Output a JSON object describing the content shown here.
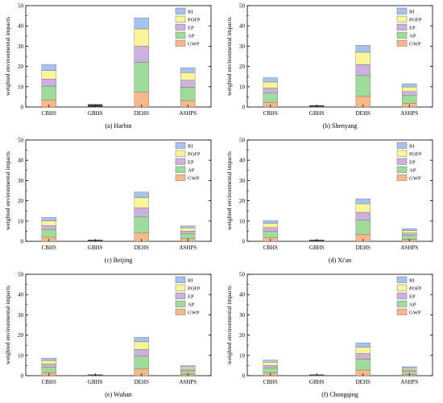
{
  "chart_data": [
    {
      "type": "bar",
      "stacked": true,
      "caption": "(a) Harbin",
      "ylabel": "weighted environmental impacts",
      "ylim": [
        0,
        50
      ],
      "yticks": [
        "0",
        "10",
        "20",
        "30",
        "40",
        "50"
      ],
      "categories": [
        "CBHS",
        "GBHS",
        "DEHS",
        "ASHPS"
      ],
      "legend_position": "top-right",
      "series": [
        {
          "name": "GWP",
          "values": [
            3.5,
            0.3,
            7.5,
            3.2
          ]
        },
        {
          "name": "AP",
          "values": [
            6.8,
            0.3,
            14.5,
            6.5
          ]
        },
        {
          "name": "EP",
          "values": [
            3.5,
            0.2,
            8,
            3.5
          ]
        },
        {
          "name": "POFP",
          "values": [
            4.2,
            0.3,
            8.5,
            3.8
          ]
        },
        {
          "name": "RI",
          "values": [
            3.0,
            0.2,
            5.5,
            2.3
          ]
        }
      ]
    },
    {
      "type": "bar",
      "stacked": true,
      "caption": "(b) Shenyang",
      "ylabel": "weighted environmental impacts",
      "ylim": [
        0,
        50
      ],
      "yticks": [
        "0",
        "10",
        "20",
        "30",
        "40",
        "50"
      ],
      "categories": [
        "CBHS",
        "GBHS",
        "DEHS",
        "ASHPS"
      ],
      "legend_position": "top-right",
      "series": [
        {
          "name": "GWP",
          "values": [
            2.3,
            0.2,
            5.2,
            1.8
          ]
        },
        {
          "name": "AP",
          "values": [
            4.5,
            0.2,
            10.3,
            3.8
          ]
        },
        {
          "name": "EP",
          "values": [
            2.5,
            0.1,
            5.5,
            2.0
          ]
        },
        {
          "name": "POFP",
          "values": [
            3.0,
            0.2,
            6.0,
            2.3
          ]
        },
        {
          "name": "RI",
          "values": [
            2.2,
            0.1,
            3.5,
            1.6
          ]
        }
      ]
    },
    {
      "type": "bar",
      "stacked": true,
      "caption": "(c) Beijing",
      "ylabel": "weighted environmental impacts",
      "ylim": [
        0,
        50
      ],
      "yticks": [
        "0",
        "10",
        "20",
        "30",
        "40",
        "50"
      ],
      "categories": [
        "CBHS",
        "GBHS",
        "DEHS",
        "ASHPS"
      ],
      "legend_position": "top-right",
      "series": [
        {
          "name": "GWP",
          "values": [
            2.0,
            0.2,
            4.2,
            1.3
          ]
        },
        {
          "name": "AP",
          "values": [
            3.8,
            0.2,
            8.0,
            2.5
          ]
        },
        {
          "name": "EP",
          "values": [
            2.0,
            0.1,
            4.3,
            1.3
          ]
        },
        {
          "name": "POFP",
          "values": [
            2.3,
            0.1,
            5.0,
            1.5
          ]
        },
        {
          "name": "RI",
          "values": [
            1.7,
            0.1,
            2.8,
            1.0
          ]
        }
      ]
    },
    {
      "type": "bar",
      "stacked": true,
      "caption": "(d) Xi'an",
      "ylabel": "weighted environmental impacts",
      "ylim": [
        0,
        50
      ],
      "yticks": [
        "0",
        "10",
        "20",
        "30",
        "40",
        "50"
      ],
      "categories": [
        "CBHS",
        "GBHS",
        "DEHS",
        "ASHPS"
      ],
      "legend_position": "top-right",
      "series": [
        {
          "name": "GWP",
          "values": [
            1.7,
            0.2,
            3.5,
            1.0
          ]
        },
        {
          "name": "AP",
          "values": [
            3.3,
            0.2,
            7.0,
            2.0
          ]
        },
        {
          "name": "EP",
          "values": [
            1.8,
            0.1,
            3.8,
            1.1
          ]
        },
        {
          "name": "POFP",
          "values": [
            2.0,
            0.1,
            4.2,
            1.2
          ]
        },
        {
          "name": "RI",
          "values": [
            1.4,
            0.1,
            2.5,
            0.9
          ]
        }
      ]
    },
    {
      "type": "bar",
      "stacked": true,
      "caption": "(e) Wuhan",
      "ylabel": "weighted environmental impacts",
      "ylim": [
        0,
        50
      ],
      "yticks": [
        "0",
        "10",
        "20",
        "30",
        "40",
        "50"
      ],
      "categories": [
        "CBHS",
        "GBHS",
        "DEHS",
        "ASHPS"
      ],
      "legend_position": "top-right",
      "series": [
        {
          "name": "GWP",
          "values": [
            1.5,
            0.1,
            3.3,
            0.8
          ]
        },
        {
          "name": "AP",
          "values": [
            2.8,
            0.1,
            6.3,
            1.6
          ]
        },
        {
          "name": "EP",
          "values": [
            1.5,
            0.1,
            3.4,
            0.9
          ]
        },
        {
          "name": "POFP",
          "values": [
            1.7,
            0.1,
            3.7,
            1.0
          ]
        },
        {
          "name": "RI",
          "values": [
            1.1,
            0.1,
            2.3,
            0.7
          ]
        }
      ]
    },
    {
      "type": "bar",
      "stacked": true,
      "caption": "(f) Chongqing",
      "ylabel": "weighted environmental impacts",
      "ylim": [
        0,
        50
      ],
      "yticks": [
        "0",
        "10",
        "20",
        "30",
        "40",
        "50"
      ],
      "categories": [
        "CBHS",
        "GBHS",
        "DEHS",
        "ASHPS"
      ],
      "legend_position": "top-right",
      "series": [
        {
          "name": "GWP",
          "values": [
            1.3,
            0.1,
            2.8,
            0.7
          ]
        },
        {
          "name": "AP",
          "values": [
            2.5,
            0.1,
            5.3,
            1.4
          ]
        },
        {
          "name": "EP",
          "values": [
            1.3,
            0.1,
            2.8,
            0.8
          ]
        },
        {
          "name": "POFP",
          "values": [
            1.5,
            0.1,
            3.1,
            0.8
          ]
        },
        {
          "name": "RI",
          "values": [
            1.1,
            0.1,
            2.2,
            0.7
          ]
        }
      ]
    }
  ],
  "colors": {
    "GWP": "#f7b88a",
    "AP": "#9fdc9c",
    "EP": "#cdb1dc",
    "POFP": "#fbf59a",
    "RI": "#a6c3ef",
    "GBHS": "#2b1f14"
  }
}
